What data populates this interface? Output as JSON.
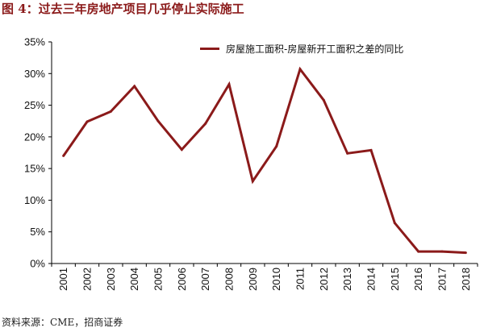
{
  "figure": {
    "number_label": "图 4：",
    "title": "过去三年房地产项目几乎停止实际施工",
    "source": "资料来源：CME，招商证券"
  },
  "colors": {
    "series": "#8b1a1a",
    "title": "#8b1a1a",
    "axis": "#000000",
    "text": "#111111"
  },
  "chart_data": {
    "type": "line",
    "title": "过去三年房地产项目几乎停止实际施工",
    "xlabel": "",
    "ylabel": "",
    "x": [
      "2001",
      "2002",
      "2003",
      "2004",
      "2005",
      "2006",
      "2007",
      "2008",
      "2009",
      "2010",
      "2011",
      "2012",
      "2013",
      "2014",
      "2015",
      "2016",
      "2017",
      "2018"
    ],
    "series": [
      {
        "name": "房屋施工面积-房屋新开工面积之差的同比",
        "values": [
          0.17,
          0.224,
          0.24,
          0.28,
          0.225,
          0.18,
          0.221,
          0.283,
          0.13,
          0.185,
          0.307,
          0.258,
          0.174,
          0.179,
          0.064,
          0.019,
          0.019,
          0.017
        ]
      }
    ],
    "ylim": [
      0,
      0.35
    ],
    "yticks": [
      0,
      0.05,
      0.1,
      0.15,
      0.2,
      0.25,
      0.3,
      0.35
    ],
    "ytick_labels": [
      "0%",
      "5%",
      "10%",
      "15%",
      "20%",
      "25%",
      "30%",
      "35%"
    ],
    "grid": false,
    "legend_position": "top-right"
  }
}
